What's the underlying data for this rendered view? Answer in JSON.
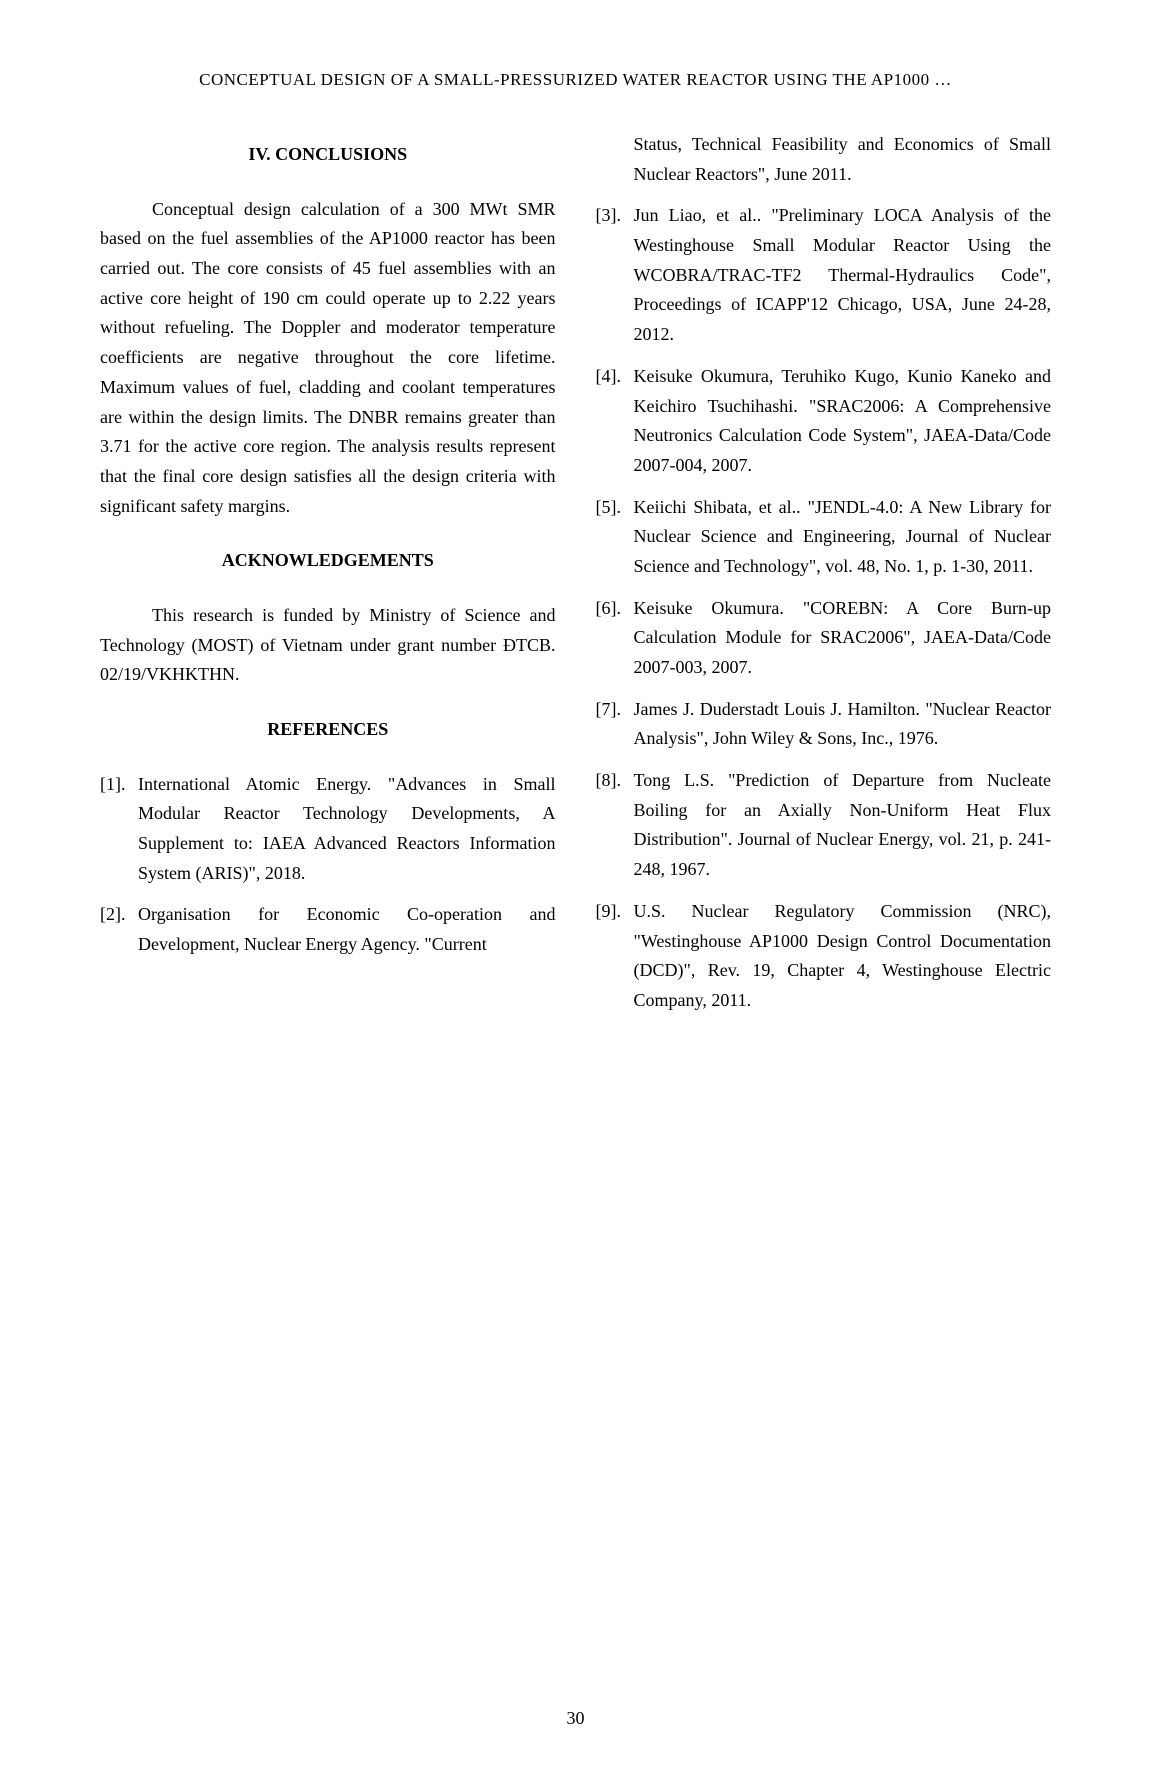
{
  "header": "CONCEPTUAL DESIGN OF A SMALL-PRESSURIZED WATER REACTOR USING THE AP1000 …",
  "sections": {
    "conclusions": {
      "heading": "IV. CONCLUSIONS",
      "body": "Conceptual design calculation of a 300 MWt SMR based on the fuel assemblies of the AP1000 reactor has been carried out. The core consists of 45 fuel assemblies with an active core height of 190 cm could operate up to 2.22 years without refueling. The Doppler and moderator temperature coefficients are negative throughout the core lifetime. Maximum values of fuel, cladding and coolant temperatures are within the design limits. The DNBR remains greater than 3.71 for the active core region. The analysis results represent that the final core design satisfies all the design criteria with significant safety margins."
    },
    "acknowledgements": {
      "heading": "ACKNOWLEDGEMENTS",
      "body": "This research is funded by Ministry of Science and Technology (MOST) of Vietnam under grant number ĐTCB. 02/19/VKHKTHN."
    },
    "references": {
      "heading": "REFERENCES"
    }
  },
  "references": [
    {
      "num": "[1].",
      "text": "International Atomic Energy. \"Advances in Small Modular Reactor Technology Developments, A Supplement to: IAEA Advanced Reactors Information System (ARIS)\", 2018."
    },
    {
      "num": "[2].",
      "text": "Organisation for Economic Co-operation and Development, Nuclear Energy Agency. \"Current"
    }
  ],
  "ref_continuation": "Status, Technical Feasibility and Economics of Small Nuclear Reactors\", June 2011.",
  "references_col2": [
    {
      "num": "[3].",
      "text": "Jun Liao, et al.. \"Preliminary LOCA Analysis of the Westinghouse Small Modular Reactor Using the WCOBRA/TRAC-TF2 Thermal-Hydraulics Code\", Proceedings of ICAPP'12 Chicago, USA, June 24-28, 2012."
    },
    {
      "num": "[4].",
      "text": "Keisuke Okumura, Teruhiko Kugo, Kunio Kaneko and Keichiro Tsuchihashi. \"SRAC2006: A Comprehensive Neutronics Calculation Code System\", JAEA-Data/Code 2007-004, 2007."
    },
    {
      "num": "[5].",
      "text": "Keiichi Shibata, et al.. \"JENDL-4.0: A New Library for Nuclear Science and Engineering, Journal of Nuclear Science and Technology\", vol. 48, No. 1, p. 1-30, 2011."
    },
    {
      "num": "[6].",
      "text": "Keisuke Okumura. \"COREBN: A Core Burn-up Calculation Module for SRAC2006\", JAEA-Data/Code 2007-003, 2007."
    },
    {
      "num": "[7].",
      "text": "James J. Duderstadt Louis J. Hamilton. \"Nuclear Reactor Analysis\", John Wiley & Sons, Inc., 1976."
    },
    {
      "num": "[8].",
      "text": "Tong L.S. \"Prediction of Departure from Nucleate Boiling for an Axially Non-Uniform Heat Flux Distribution\". Journal of Nuclear Energy, vol. 21, p. 241-248, 1967."
    },
    {
      "num": "[9].",
      "text": "U.S. Nuclear Regulatory Commission (NRC), \"Westinghouse AP1000 Design Control Documentation (DCD)\", Rev. 19, Chapter 4, Westinghouse Electric Company, 2011."
    }
  ],
  "page_number": "30"
}
